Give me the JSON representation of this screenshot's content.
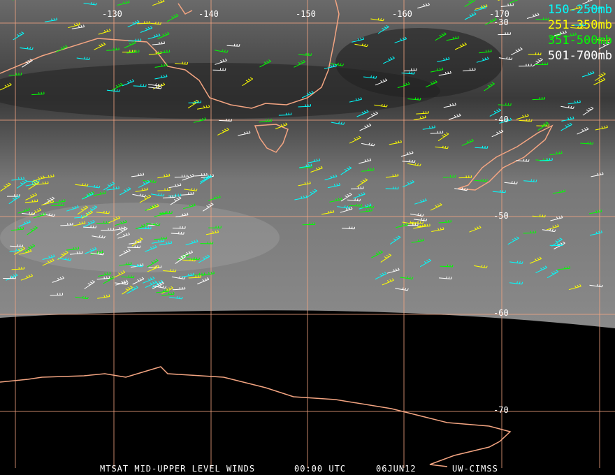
{
  "map": {
    "longitude_labels": [
      "-130",
      "-140",
      "-150",
      "-160",
      "-170"
    ],
    "latitude_labels": [
      "-30",
      "-40",
      "-50",
      "-60",
      "-70"
    ],
    "grid_color": "#f4a582",
    "coast_color": "#f4a582"
  },
  "legend": [
    {
      "label": "150-250mb",
      "color": "#00ffff"
    },
    {
      "label": "251-350mb",
      "color": "#ffff00"
    },
    {
      "label": "351-500mb",
      "color": "#00ff00"
    },
    {
      "label": "501-700mb",
      "color": "#ffffff"
    }
  ],
  "footer": {
    "title": "MTSAT MID-UPPER LEVEL WINDS",
    "time": "00:00 UTC",
    "date": "06JUN12",
    "source": "UW-CIMSS"
  }
}
